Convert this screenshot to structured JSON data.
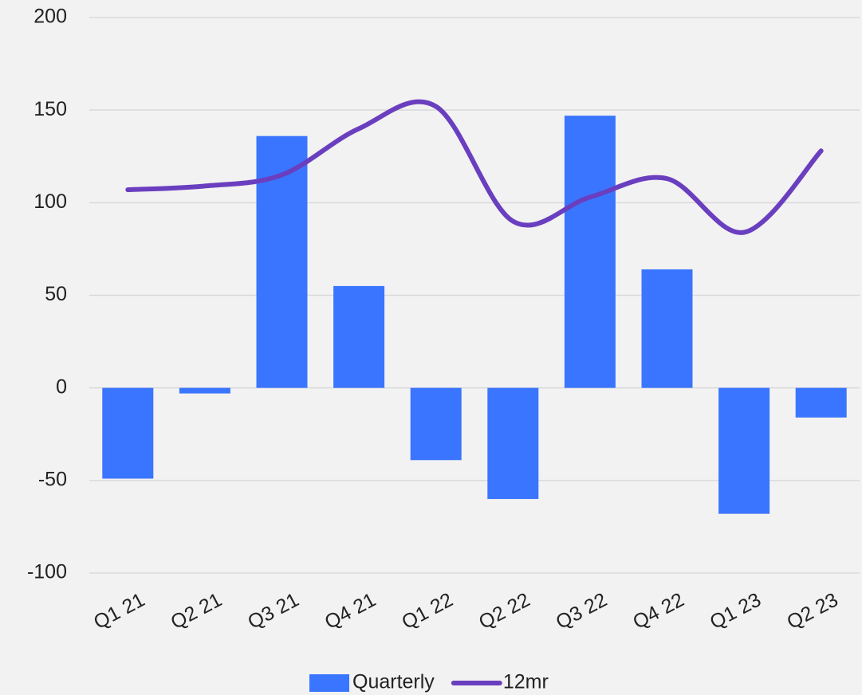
{
  "chart_data": {
    "type": "bar_line",
    "categories": [
      "Q1 21",
      "Q2 21",
      "Q3 21",
      "Q4 21",
      "Q1 22",
      "Q2 22",
      "Q3 22",
      "Q4 22",
      "Q1 23",
      "Q2 23"
    ],
    "series": [
      {
        "name": "Quarterly",
        "type": "bar",
        "color": "#3a75ff",
        "values": [
          -49,
          -3,
          136,
          55,
          -39,
          -60,
          147,
          64,
          -68,
          -16
        ]
      },
      {
        "name": "12mr",
        "type": "line",
        "color": "#6a3fbf",
        "values": [
          107,
          109,
          115,
          140,
          152,
          90,
          103,
          113,
          84,
          128
        ]
      }
    ],
    "ylim": [
      -100,
      200
    ],
    "yticks": [
      -100,
      -50,
      0,
      50,
      100,
      150,
      200
    ],
    "grid": true,
    "legend": "bottom"
  }
}
